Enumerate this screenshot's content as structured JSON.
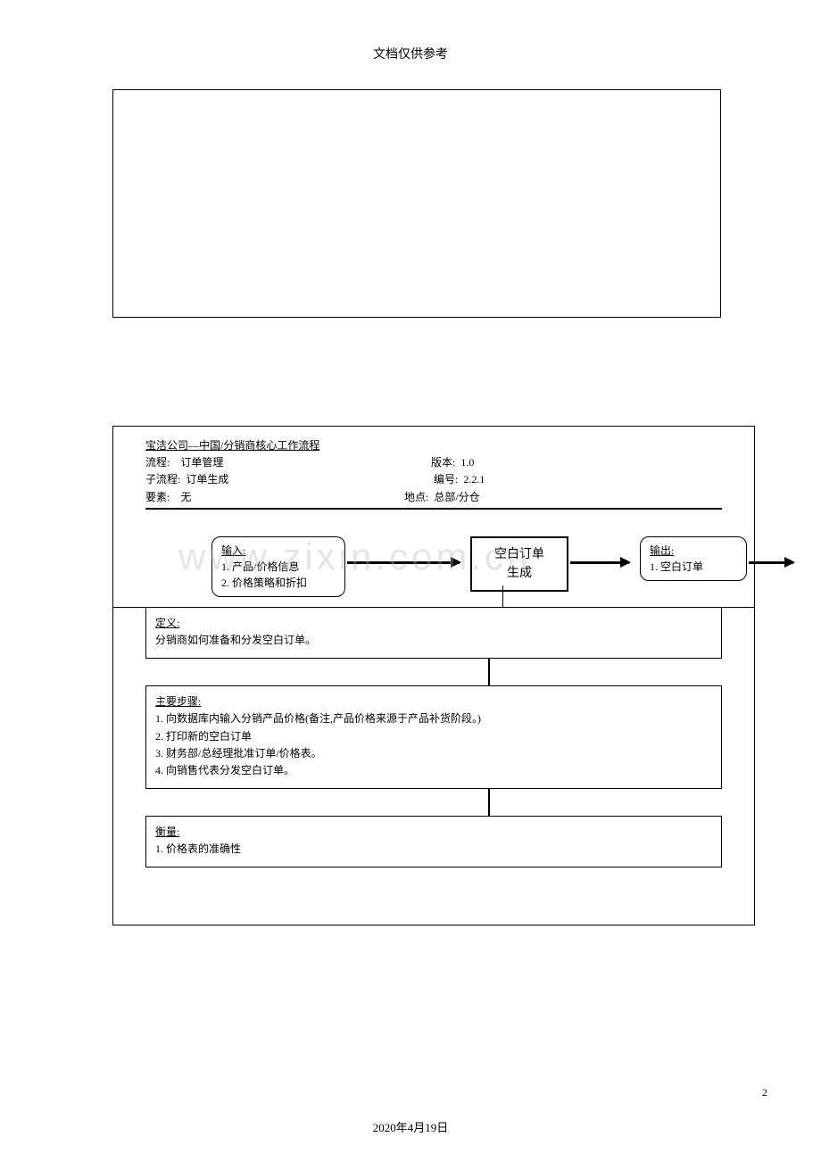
{
  "header": {
    "text": "文档仅供参考"
  },
  "meta": {
    "title": "宝洁公司—中国/分销商核心工作流程",
    "process_label": "流程:",
    "process_value": "订单管理",
    "version_label": "版本:",
    "version_value": "1.0",
    "subprocess_label": "子流程:",
    "subprocess_value": "订单生成",
    "code_label": "编号:",
    "code_value": "2.2.1",
    "element_label": "要素:",
    "element_value": "无",
    "location_label": "地点:",
    "location_value": "总部/分仓"
  },
  "flow": {
    "input_label": "输入:",
    "input_line1": "1.  产品/价格信息",
    "input_line2": "2.  价格策略和折扣",
    "process_line1": "空白订单",
    "process_line2": "生成",
    "output_label": "输出:",
    "output_line1": "1.  空白订单"
  },
  "definition": {
    "label": "定义:",
    "text": "分销商如何准备和分发空白订单。"
  },
  "steps": {
    "label": "主要步骤:",
    "s1": "1.  向数据库内输入分销产品价格(备注,产品价格来源于产品补货阶段。)",
    "s2": "2.  打印新的空白订单",
    "s3": "3.  财务部/总经理批准订单/价格表。",
    "s4": "4.  向销售代表分发空白订单。"
  },
  "measure": {
    "label": "衡量:",
    "text": "1.  价格表的准确性"
  },
  "watermark": {
    "text": "www.zixin.com.cn"
  },
  "footer": {
    "date": "2020年4月19日",
    "page": "2"
  }
}
